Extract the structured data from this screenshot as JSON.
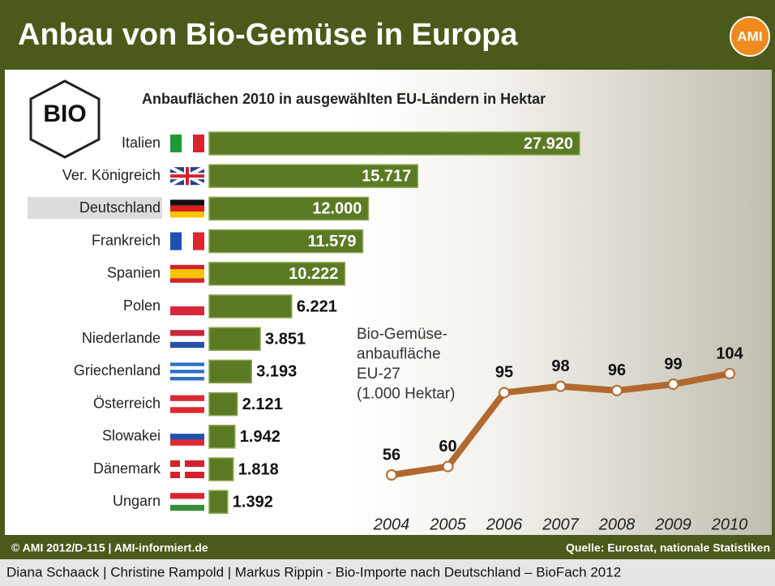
{
  "header": {
    "title": "Anbau von Bio-Gemüse in Europa",
    "logo": "AMI"
  },
  "badge": {
    "label": "BIO"
  },
  "chart_data": [
    {
      "type": "bar",
      "title": "Anbauflächen 2010 in ausgewählten EU-Ländern in Hektar",
      "categories": [
        "Italien",
        "Ver. Königreich",
        "Deutschland",
        "Frankreich",
        "Spanien",
        "Polen",
        "Niederlande",
        "Griechenland",
        "Österreich",
        "Slowakei",
        "Dänemark",
        "Ungarn"
      ],
      "values": [
        27920,
        15717,
        12000,
        11579,
        10222,
        6221,
        3851,
        3193,
        2121,
        1942,
        1818,
        1392
      ],
      "value_labels": [
        "27.920",
        "15.717",
        "12.000",
        "11.579",
        "10.222",
        "6.221",
        "3.851",
        "3.193",
        "2.121",
        "1.942",
        "1.818",
        "1.392"
      ],
      "color": "#5b7a24"
    },
    {
      "type": "line",
      "title_lines": [
        "Bio-Gemüse-",
        "anbaufläche",
        "EU-27",
        "(1.000 Hektar)"
      ],
      "x": [
        2004,
        2005,
        2006,
        2007,
        2008,
        2009,
        2010
      ],
      "values": [
        56,
        60,
        95,
        98,
        96,
        99,
        104
      ],
      "color": "#b1692f"
    }
  ],
  "footer": {
    "left": "© AMI 2012/D-115 | AMI-informiert.de",
    "right": "Quelle: Eurostat, nationale Statistiken"
  },
  "caption": "Diana Schaack | Christine Rampold | Markus Rippin - Bio-Importe nach Deutschland – BioFach 2012"
}
